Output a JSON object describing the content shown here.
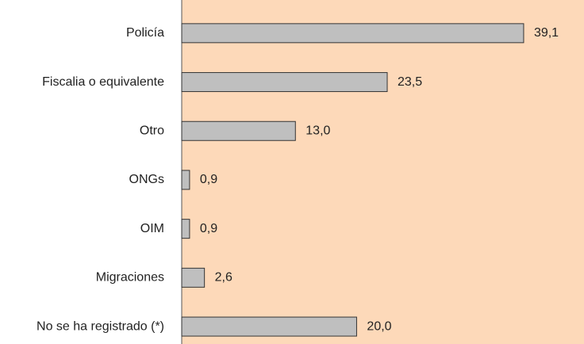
{
  "chart_data": {
    "type": "barh",
    "categories": [
      "Policía",
      "Fiscalia o equivalente",
      "Otro",
      "ONGs",
      "OIM",
      "Migraciones",
      "No se ha registrado (*)"
    ],
    "values": [
      39.1,
      23.5,
      13.0,
      0.9,
      0.9,
      2.6,
      20.0
    ],
    "value_labels": [
      "39,1",
      "23,5",
      "13,0",
      "0,9",
      "0,9",
      "2,6",
      "20,0"
    ],
    "color": "#bfbfbf",
    "background": "#fdd9b9",
    "xlim": [
      0,
      46
    ]
  }
}
